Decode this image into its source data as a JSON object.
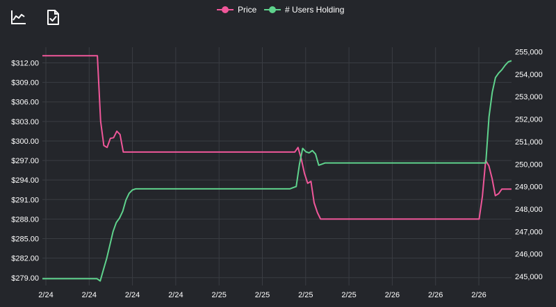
{
  "toolbar": {
    "icons": [
      "line-chart-icon",
      "document-check-icon"
    ]
  },
  "colors": {
    "background": "#24262b",
    "grid": "#3a3d43",
    "price": "#f0579a",
    "users": "#5fd38d",
    "text": "#ffffff"
  },
  "chart_data": {
    "type": "line",
    "x_tick_labels": [
      "2/24",
      "2/24",
      "2/24",
      "2/24",
      "2/25",
      "2/25",
      "2/25",
      "2/25",
      "2/26",
      "2/26",
      "2/26"
    ],
    "series": [
      {
        "name": "Price",
        "axis": "left",
        "values": [
          313.1,
          313.1,
          313.1,
          313.1,
          313.1,
          313.1,
          313.1,
          313.1,
          313.1,
          313.1,
          313.1,
          313.1,
          313.1,
          313.1,
          313.1,
          313.1,
          313.1,
          313.1,
          303.0,
          299.3,
          299.0,
          300.4,
          300.5,
          301.5,
          301.0,
          298.3,
          298.3,
          298.3,
          298.3,
          298.3,
          298.3,
          298.3,
          298.3,
          298.3,
          298.3,
          298.3,
          298.3,
          298.3,
          298.3,
          298.3,
          298.3,
          298.3,
          298.3,
          298.3,
          298.3,
          298.3,
          298.3,
          298.3,
          298.3,
          298.3,
          298.3,
          298.3,
          298.3,
          298.3,
          298.3,
          298.3,
          298.3,
          298.3,
          298.3,
          298.3,
          298.3,
          298.3,
          298.3,
          298.3,
          298.3,
          298.3,
          298.3,
          298.3,
          298.3,
          298.3,
          298.3,
          298.3,
          298.3,
          298.3,
          298.3,
          298.3,
          298.3,
          298.3,
          298.3,
          299.0,
          297.3,
          295.0,
          293.5,
          293.8,
          290.5,
          289.0,
          288.0,
          288.0,
          288.0,
          288.0,
          288.0,
          288.0,
          288.0,
          288.0,
          288.0,
          288.0,
          288.0,
          288.0,
          288.0,
          288.0,
          288.0,
          288.0,
          288.0,
          288.0,
          288.0,
          288.0,
          288.0,
          288.0,
          288.0,
          288.0,
          288.0,
          288.0,
          288.0,
          288.0,
          288.0,
          288.0,
          288.0,
          288.0,
          288.0,
          288.0,
          288.0,
          288.0,
          288.0,
          288.0,
          288.0,
          288.0,
          288.0,
          288.0,
          288.0,
          288.0,
          288.0,
          288.0,
          288.0,
          288.0,
          288.0,
          288.0,
          291.5,
          297.0,
          296.2,
          294.2,
          291.6,
          291.9,
          292.6,
          292.6,
          292.6,
          292.6
        ]
      },
      {
        "name": "# Users Holding",
        "axis": "right",
        "values": [
          244900,
          244900,
          244900,
          244900,
          244900,
          244900,
          244900,
          244900,
          244900,
          244900,
          244900,
          244900,
          244900,
          244900,
          244900,
          244900,
          244900,
          244900,
          244800,
          245300,
          245800,
          246400,
          247000,
          247400,
          247600,
          247900,
          248400,
          248700,
          248850,
          248900,
          248900,
          248900,
          248900,
          248900,
          248900,
          248900,
          248900,
          248900,
          248900,
          248900,
          248900,
          248900,
          248900,
          248900,
          248900,
          248900,
          248900,
          248900,
          248900,
          248900,
          248900,
          248900,
          248900,
          248900,
          248900,
          248900,
          248900,
          248900,
          248900,
          248900,
          248900,
          248900,
          248900,
          248900,
          248900,
          248900,
          248900,
          248900,
          248900,
          248900,
          248900,
          248900,
          248900,
          248900,
          248900,
          248900,
          248900,
          248900,
          248950,
          249000,
          250000,
          250700,
          250550,
          250500,
          250600,
          250450,
          249950,
          250000,
          250050,
          250050,
          250050,
          250050,
          250050,
          250050,
          250050,
          250050,
          250050,
          250050,
          250050,
          250050,
          250050,
          250050,
          250050,
          250050,
          250050,
          250050,
          250050,
          250050,
          250050,
          250050,
          250050,
          250050,
          250050,
          250050,
          250050,
          250050,
          250050,
          250050,
          250050,
          250050,
          250050,
          250050,
          250050,
          250050,
          250050,
          250050,
          250050,
          250050,
          250050,
          250050,
          250050,
          250050,
          250050,
          250050,
          250050,
          250050,
          250050,
          250050,
          250050,
          252100,
          253200,
          253850,
          254050,
          254200,
          254400,
          254550,
          254600
        ]
      }
    ],
    "left_axis": {
      "ticks": [
        "$279.00",
        "$282.00",
        "$285.00",
        "$288.00",
        "$291.00",
        "$294.00",
        "$297.00",
        "$300.00",
        "$303.00",
        "$306.00",
        "$309.00",
        "$312.00"
      ],
      "ylim": [
        277.8,
        314.4
      ]
    },
    "right_axis": {
      "ticks": [
        "245,000",
        "246,000",
        "247,000",
        "248,000",
        "249,000",
        "250,000",
        "251,000",
        "252,000",
        "253,000",
        "254,000",
        "255,000"
      ],
      "ylim": [
        244600,
        255200
      ]
    },
    "grid": true,
    "legend_position": "top-center"
  }
}
